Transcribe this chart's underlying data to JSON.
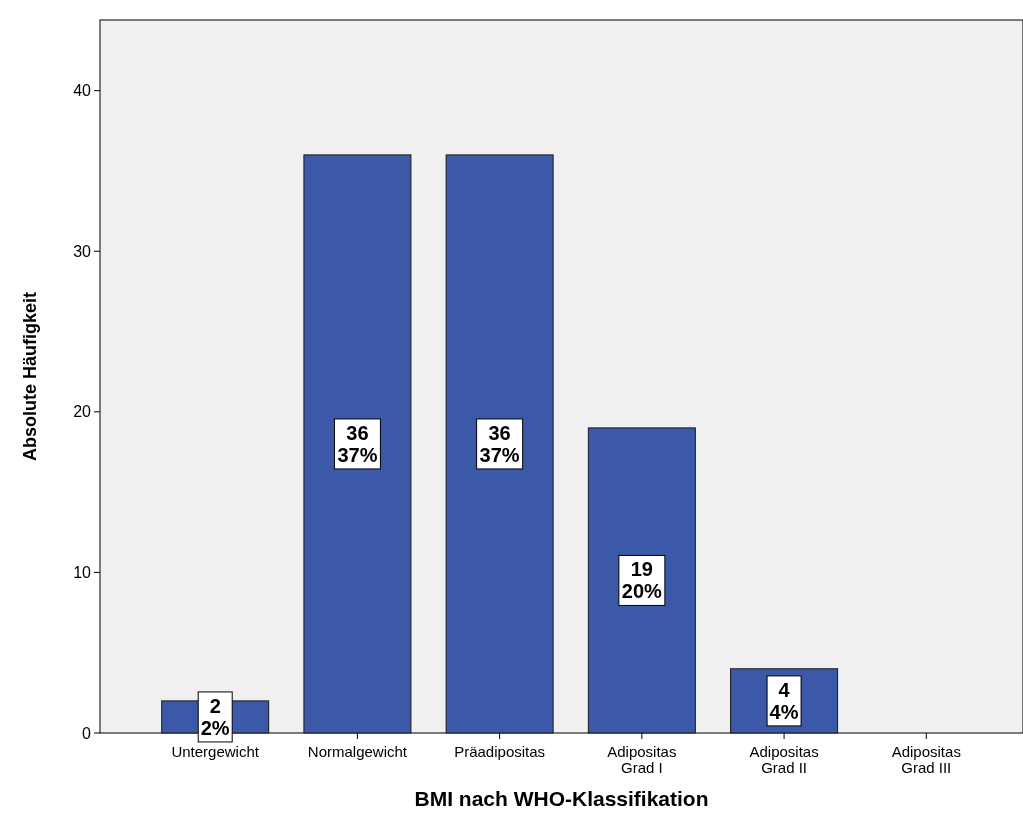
{
  "chart_data": {
    "type": "bar",
    "xlabel": "BMI nach WHO-Klassifikation",
    "ylabel": "Absolute Häufigkeit",
    "categories": [
      "Untergewicht",
      "Normalgewicht",
      "Präadipositas",
      "Adipositas\nGrad I",
      "Adipositas\nGrad II",
      "Adipositas\nGrad III"
    ],
    "values": [
      2,
      36,
      36,
      19,
      4,
      0
    ],
    "value_labels": [
      "2\n2%",
      "36\n37%",
      "36\n37%",
      "19\n20%",
      "4\n4%",
      null
    ],
    "color": "#3c58a8",
    "ylim": [
      0,
      44.4
    ],
    "yticks": [
      0,
      10,
      20,
      30,
      40
    ],
    "grid": false
  }
}
